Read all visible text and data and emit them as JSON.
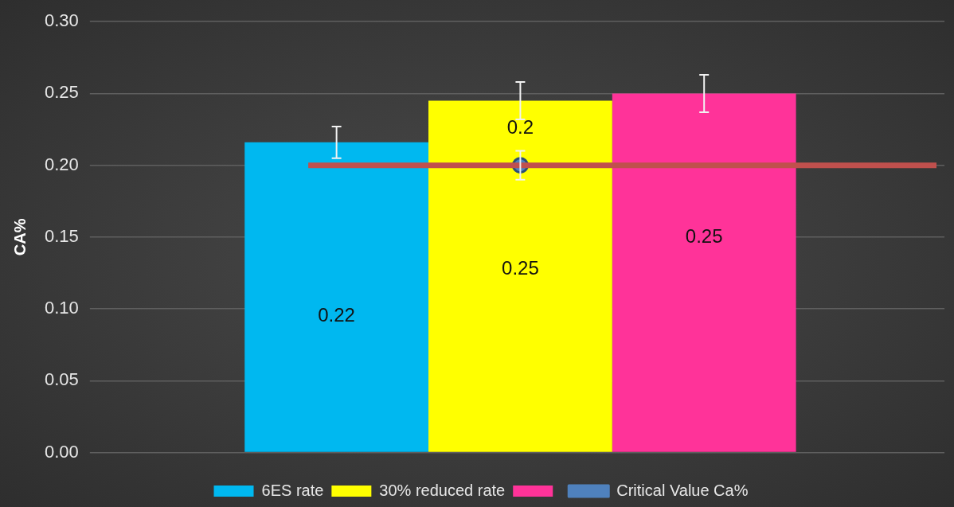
{
  "chart_data": {
    "type": "bar",
    "ylabel": "CA%",
    "categories": [
      null
    ],
    "series": [
      {
        "name": "6ES rate",
        "color": "#00b8f0",
        "values": [
          0.216
        ],
        "errors": [
          0.011
        ],
        "value_labels": [
          "0.22"
        ]
      },
      {
        "name": "30% reduced rate",
        "color": "#ffff00",
        "values": [
          0.245
        ],
        "errors": [
          0.013
        ],
        "value_labels": [
          "0.25"
        ]
      },
      {
        "color": "#ff3399",
        "values": [
          0.25
        ],
        "errors": [
          0.013
        ],
        "value_labels": [
          "0.25"
        ]
      },
      {
        "name": "Critical Value Ca%",
        "type": "line",
        "color": "#4f81bd",
        "values": [
          0.2
        ],
        "errors": [
          0.01
        ],
        "value_labels": [
          "0.2"
        ],
        "marker": "circle"
      }
    ],
    "ref_lines": [
      {
        "axis": "y",
        "value": 0.2,
        "color": "#c0504d"
      }
    ],
    "ylim": [
      0,
      0.3
    ],
    "yticks": [
      {
        "value": 0,
        "label": "0.00"
      },
      {
        "value": 0.05,
        "label": "0.05"
      },
      {
        "value": 0.1,
        "label": "0.10"
      },
      {
        "value": 0.15,
        "label": "0.15"
      },
      {
        "value": 0.2,
        "label": "0.20"
      },
      {
        "value": 0.25,
        "label": "0.25"
      },
      {
        "value": 0.3,
        "label": "0.30"
      }
    ],
    "grid": "y",
    "legend": "bottom"
  }
}
